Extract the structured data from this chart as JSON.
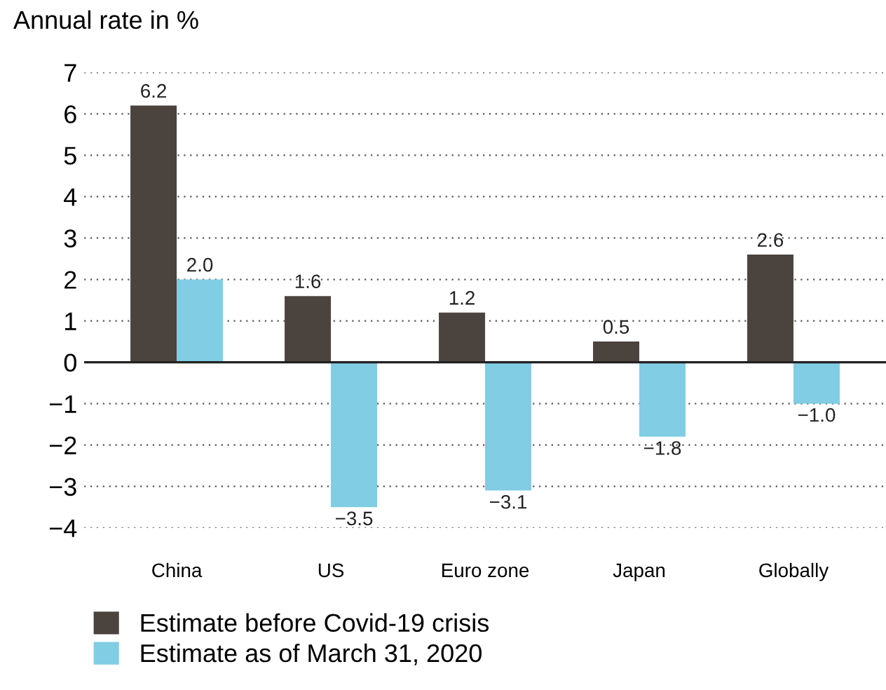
{
  "chart_data": {
    "type": "bar",
    "ylabel": "Annual rate in %",
    "categories": [
      "China",
      "US",
      "Euro zone",
      "Japan",
      "Globally"
    ],
    "series": [
      {
        "name": "Estimate before Covid-19 crisis",
        "color": "#4b433e",
        "values": [
          6.2,
          1.6,
          1.2,
          0.5,
          2.6
        ],
        "value_labels": [
          "6.2",
          "1.6",
          "1.2",
          "0.5",
          "2.6"
        ]
      },
      {
        "name": "Estimate as of March 31, 2020",
        "color": "#80cde4",
        "values": [
          2.0,
          -3.5,
          -3.1,
          -1.8,
          -1.0
        ],
        "value_labels": [
          "2.0",
          "−3.5",
          "−3.1",
          "−1.8",
          "−1.0"
        ]
      }
    ],
    "ylim": [
      -4,
      7
    ],
    "yticks": [
      -4,
      -3,
      -2,
      -1,
      0,
      1,
      2,
      3,
      4,
      5,
      6,
      7
    ],
    "grid": "y",
    "legend": "bottom left"
  }
}
